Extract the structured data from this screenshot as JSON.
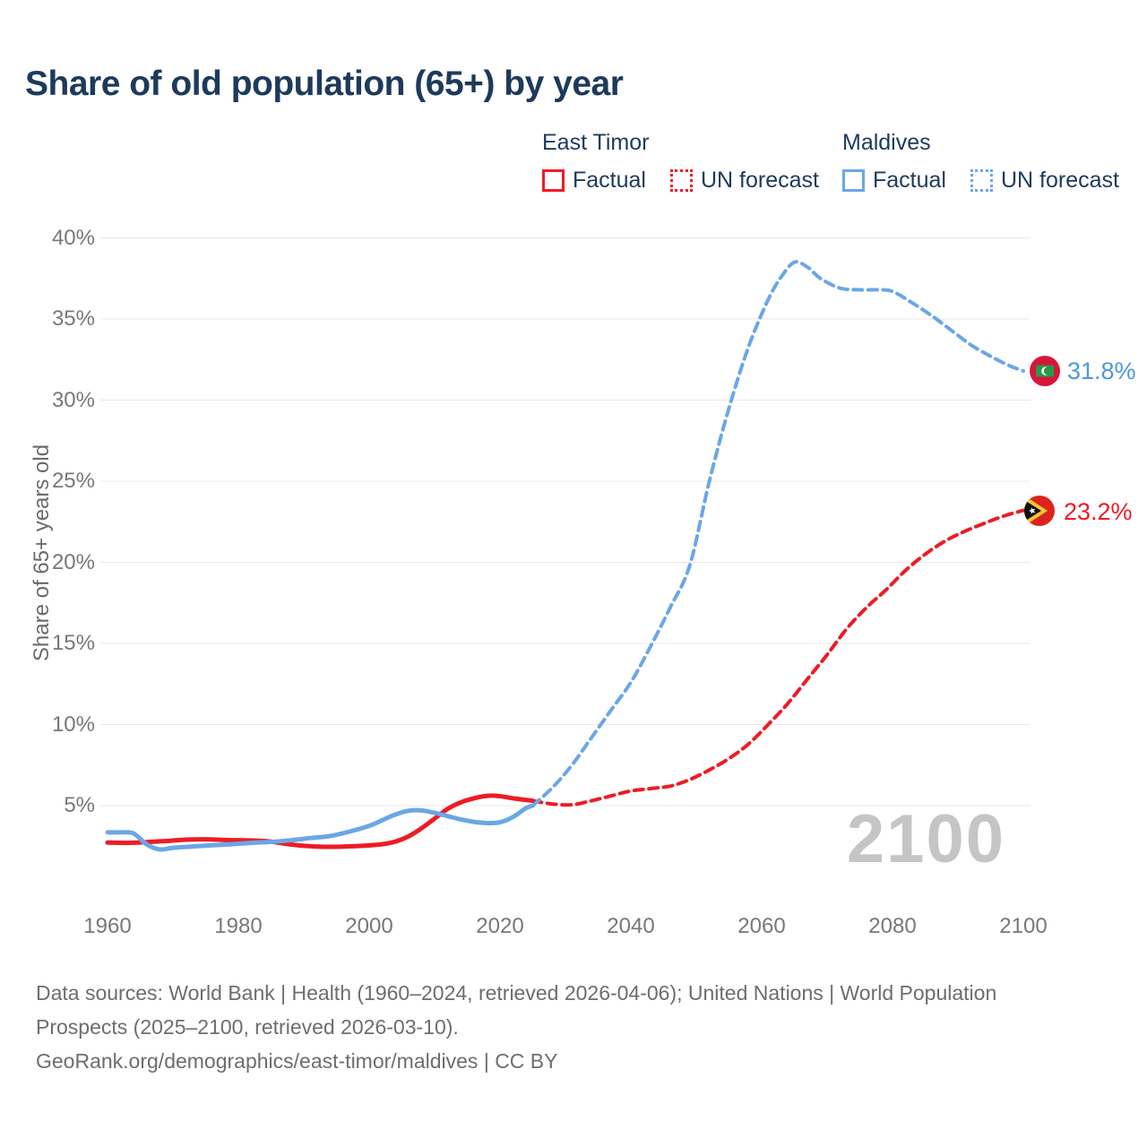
{
  "header": {
    "title": "Share of old population (65+) by year"
  },
  "legend": {
    "groups": [
      {
        "name": "East Timor",
        "color": "#ed1c24",
        "items": [
          {
            "label": "Factual",
            "style": "solid"
          },
          {
            "label": "UN forecast",
            "style": "dotted"
          }
        ]
      },
      {
        "name": "Maldives",
        "color": "#6aa7e6",
        "items": [
          {
            "label": "Factual",
            "style": "solid"
          },
          {
            "label": "UN forecast",
            "style": "dotted"
          }
        ]
      }
    ]
  },
  "colors": {
    "east_timor": "#ed1c24",
    "maldives": "#6aa7e6",
    "maldives_text": "#4e97e3",
    "title_navy": "#1d3a5c",
    "axis_text": "#787878",
    "grid": "#e8e8e8",
    "watermark": "#c5c5c5",
    "footer_text": "#6d6d6d"
  },
  "chart_data": {
    "type": "line",
    "title": "Share of old population (65+) by year",
    "xlabel": "",
    "ylabel": "Share of 65+ years old",
    "xlim": [
      1955,
      2112
    ],
    "ylim": [
      0,
      41
    ],
    "grid": true,
    "legend_position": "top-right",
    "x_ticks": [
      1960,
      1980,
      2000,
      2020,
      2040,
      2060,
      2080,
      2100
    ],
    "x_tick_labels": [
      "1960",
      "1980",
      "2000",
      "2020",
      "2040",
      "2060",
      "2080",
      "2100"
    ],
    "y_ticks": [
      5,
      10,
      15,
      20,
      25,
      30,
      35,
      40
    ],
    "y_tick_labels": [
      "5%",
      "10%",
      "15%",
      "20%",
      "25%",
      "30%",
      "35%",
      "40%"
    ],
    "watermark": "2100",
    "series": [
      {
        "name": "East Timor — Factual",
        "color": "#ed1c24",
        "style": "solid",
        "points": [
          [
            1960,
            2.72
          ],
          [
            1963,
            2.7
          ],
          [
            1966,
            2.75
          ],
          [
            1969,
            2.82
          ],
          [
            1972,
            2.9
          ],
          [
            1975,
            2.92
          ],
          [
            1978,
            2.88
          ],
          [
            1981,
            2.86
          ],
          [
            1984,
            2.82
          ],
          [
            1986,
            2.72
          ],
          [
            1988,
            2.6
          ],
          [
            1990,
            2.52
          ],
          [
            1993,
            2.46
          ],
          [
            1996,
            2.47
          ],
          [
            1999,
            2.52
          ],
          [
            2002,
            2.62
          ],
          [
            2004,
            2.78
          ],
          [
            2006,
            3.1
          ],
          [
            2008,
            3.6
          ],
          [
            2010,
            4.2
          ],
          [
            2012,
            4.8
          ],
          [
            2014,
            5.2
          ],
          [
            2016,
            5.45
          ],
          [
            2018,
            5.6
          ],
          [
            2020,
            5.58
          ],
          [
            2022,
            5.45
          ],
          [
            2025,
            5.3
          ]
        ]
      },
      {
        "name": "East Timor — UN forecast",
        "color": "#ed1c24",
        "style": "dashed",
        "points": [
          [
            2025,
            5.3
          ],
          [
            2028,
            5.1
          ],
          [
            2031,
            5.05
          ],
          [
            2034,
            5.3
          ],
          [
            2037,
            5.6
          ],
          [
            2040,
            5.9
          ],
          [
            2043,
            6.05
          ],
          [
            2046,
            6.2
          ],
          [
            2049,
            6.6
          ],
          [
            2052,
            7.2
          ],
          [
            2055,
            7.9
          ],
          [
            2058,
            8.8
          ],
          [
            2061,
            10.0
          ],
          [
            2064,
            11.3
          ],
          [
            2067,
            12.8
          ],
          [
            2070,
            14.3
          ],
          [
            2073,
            15.9
          ],
          [
            2076,
            17.2
          ],
          [
            2079,
            18.3
          ],
          [
            2082,
            19.5
          ],
          [
            2085,
            20.5
          ],
          [
            2088,
            21.3
          ],
          [
            2091,
            21.9
          ],
          [
            2094,
            22.4
          ],
          [
            2097,
            22.85
          ],
          [
            2100,
            23.2
          ]
        ]
      },
      {
        "name": "Maldives — Factual",
        "color": "#6aa7e6",
        "style": "solid",
        "points": [
          [
            1960,
            3.35
          ],
          [
            1962,
            3.35
          ],
          [
            1964,
            3.28
          ],
          [
            1966,
            2.6
          ],
          [
            1968,
            2.3
          ],
          [
            1970,
            2.4
          ],
          [
            1973,
            2.48
          ],
          [
            1976,
            2.55
          ],
          [
            1979,
            2.62
          ],
          [
            1982,
            2.7
          ],
          [
            1985,
            2.76
          ],
          [
            1988,
            2.86
          ],
          [
            1991,
            3.0
          ],
          [
            1994,
            3.12
          ],
          [
            1997,
            3.4
          ],
          [
            2000,
            3.75
          ],
          [
            2002,
            4.1
          ],
          [
            2004,
            4.45
          ],
          [
            2006,
            4.68
          ],
          [
            2008,
            4.7
          ],
          [
            2010,
            4.55
          ],
          [
            2012,
            4.35
          ],
          [
            2014,
            4.15
          ],
          [
            2016,
            4.0
          ],
          [
            2018,
            3.92
          ],
          [
            2020,
            3.97
          ],
          [
            2022,
            4.3
          ],
          [
            2024,
            4.85
          ],
          [
            2025,
            5.0
          ]
        ]
      },
      {
        "name": "Maldives — UN forecast",
        "color": "#6aa7e6",
        "style": "dashed",
        "points": [
          [
            2025,
            5.0
          ],
          [
            2028,
            6.1
          ],
          [
            2031,
            7.5
          ],
          [
            2034,
            9.2
          ],
          [
            2037,
            10.9
          ],
          [
            2040,
            12.6
          ],
          [
            2043,
            14.8
          ],
          [
            2046,
            17.2
          ],
          [
            2049,
            19.8
          ],
          [
            2052,
            25.0
          ],
          [
            2055,
            29.5
          ],
          [
            2058,
            33.3
          ],
          [
            2061,
            36.2
          ],
          [
            2063,
            37.6
          ],
          [
            2065,
            38.5
          ],
          [
            2067,
            38.2
          ],
          [
            2069,
            37.5
          ],
          [
            2072,
            36.9
          ],
          [
            2075,
            36.8
          ],
          [
            2078,
            36.8
          ],
          [
            2080,
            36.7
          ],
          [
            2083,
            36.0
          ],
          [
            2086,
            35.2
          ],
          [
            2089,
            34.3
          ],
          [
            2092,
            33.4
          ],
          [
            2095,
            32.7
          ],
          [
            2098,
            32.1
          ],
          [
            2100,
            31.8
          ]
        ]
      }
    ],
    "end_labels": {
      "maldives": {
        "value": "31.8%",
        "flag": "maldives-flag"
      },
      "east_timor": {
        "value": "23.2%",
        "flag": "east-timor-flag"
      }
    }
  },
  "footer": {
    "sources": "Data sources: World Bank | Health (1960–2024, retrieved 2026-04-06); United Nations | World Population Prospects (2025–2100, retrieved 2026-03-10).",
    "attribution": "GeoRank.org/demographics/east-timor/maldives | CC BY"
  }
}
